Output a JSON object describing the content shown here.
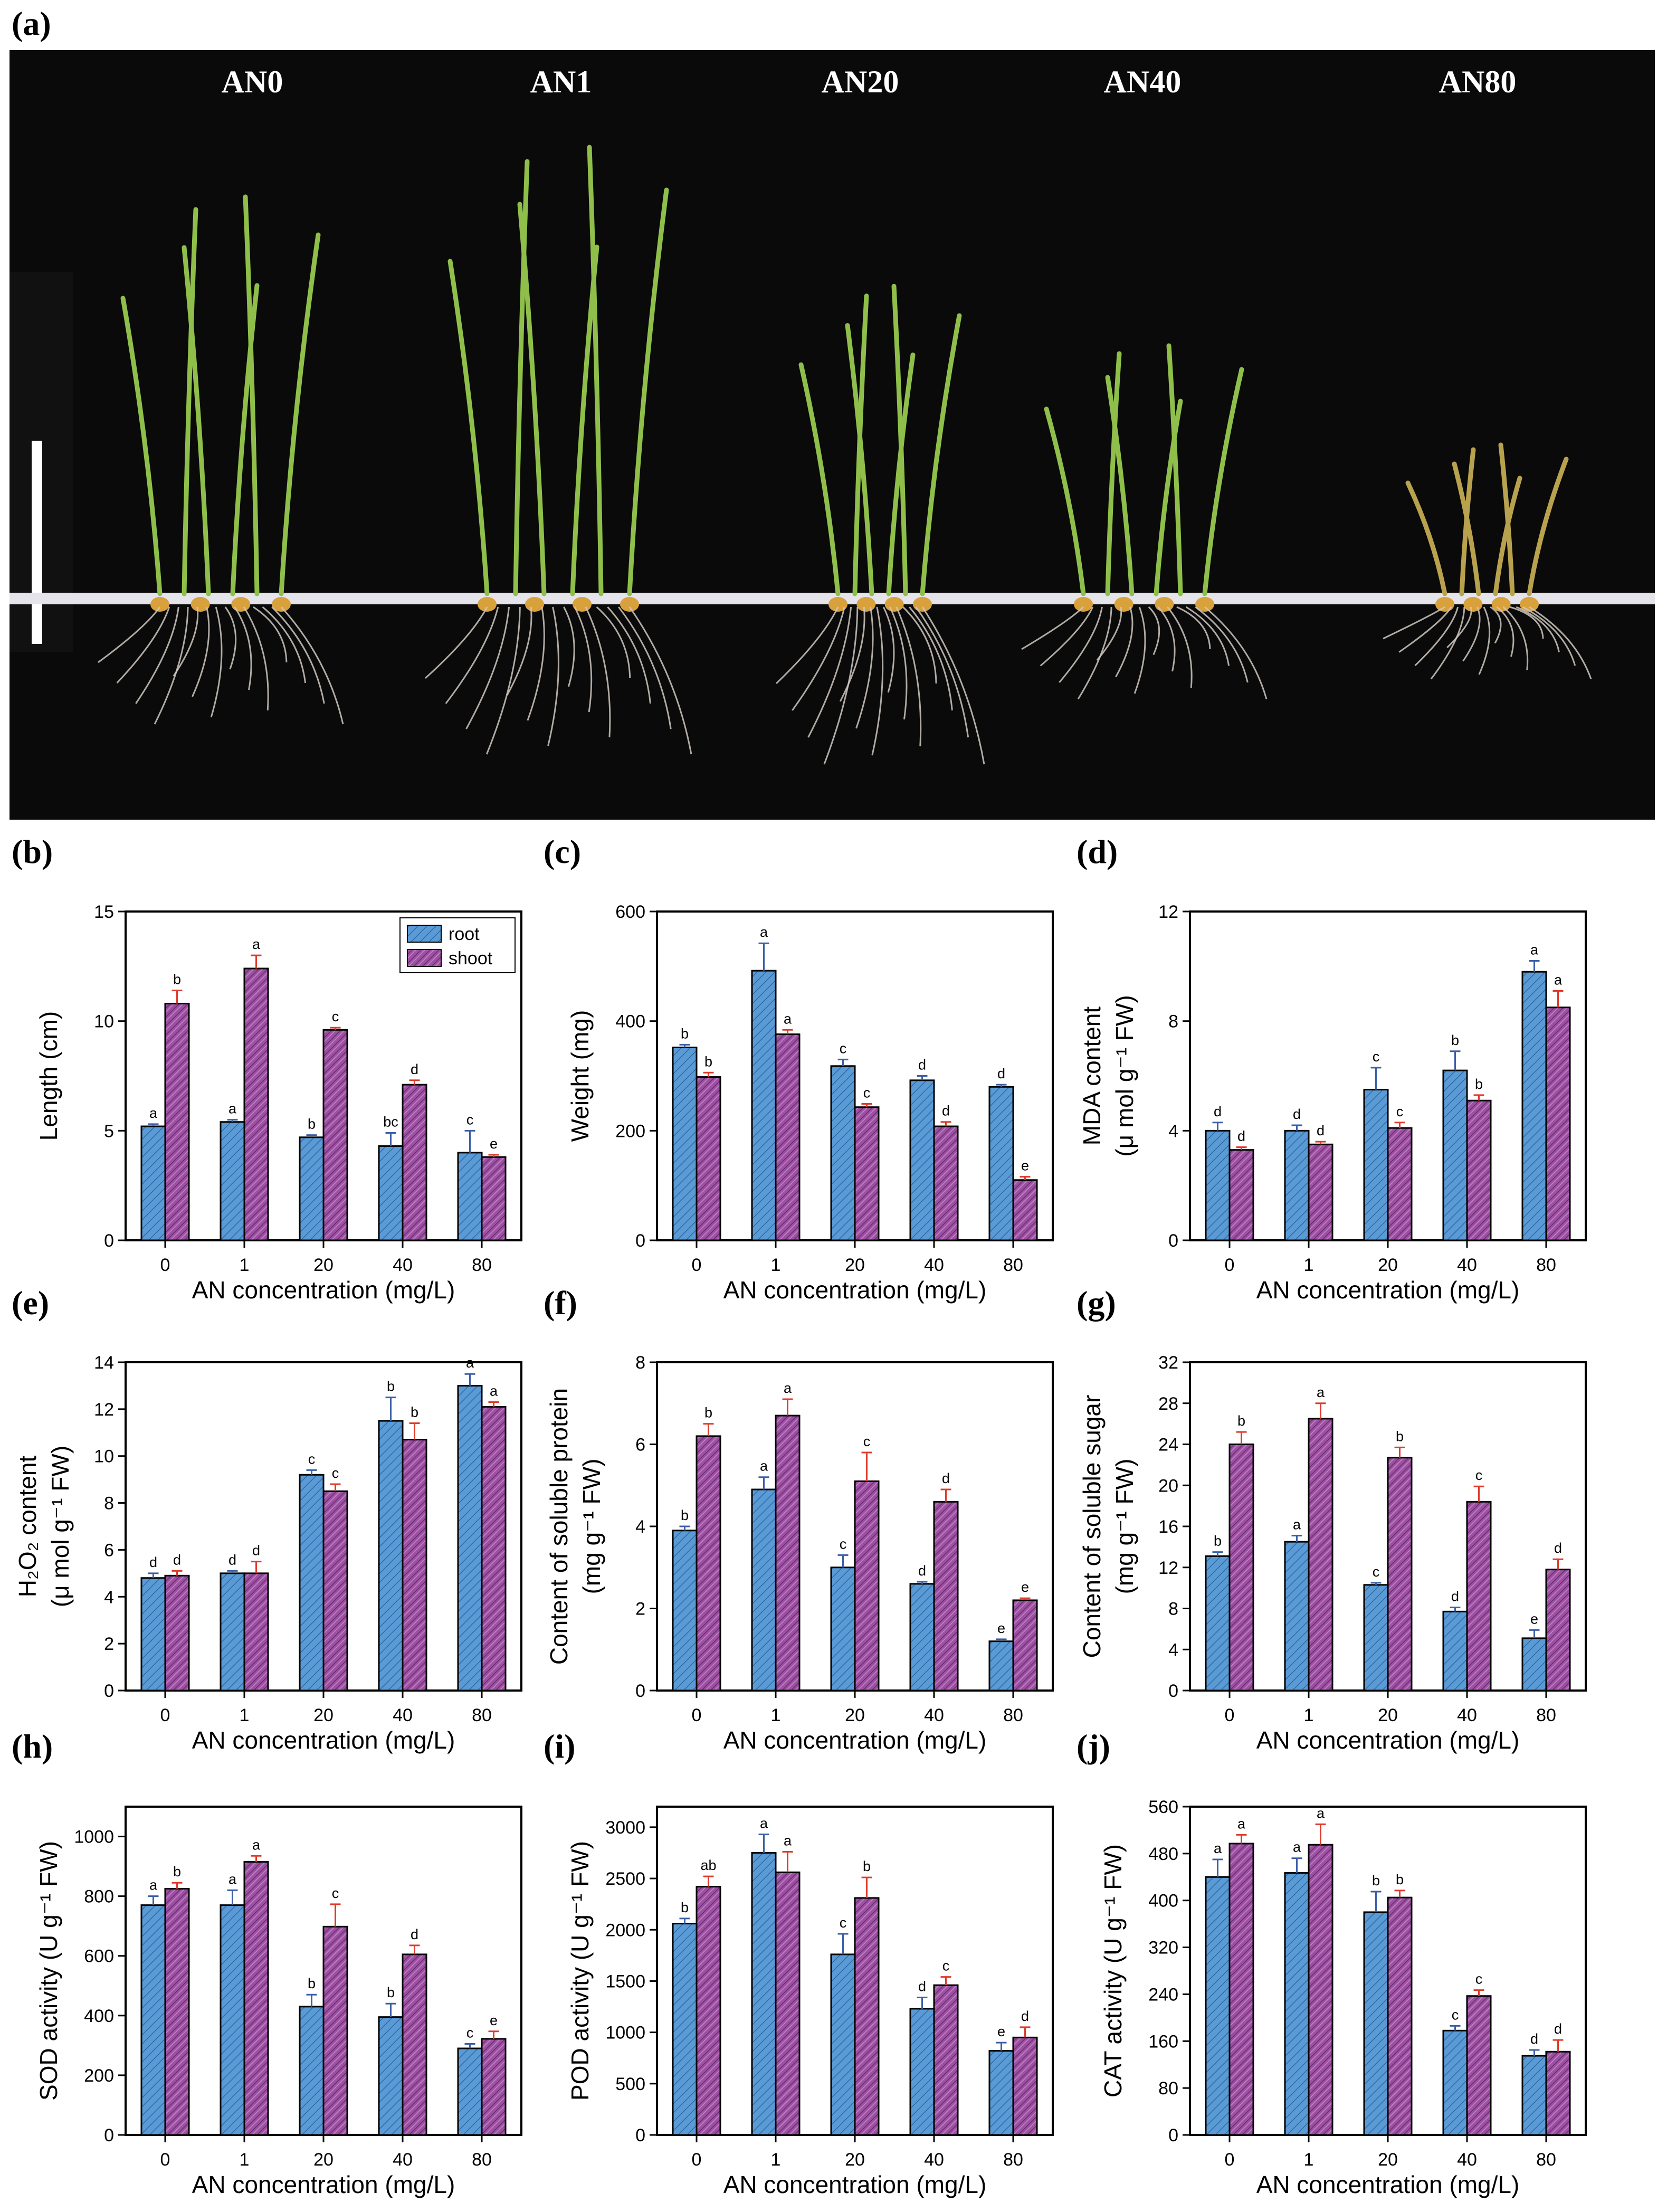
{
  "figure": {
    "panel_a_label": "(a)",
    "photo_labels": [
      "AN0",
      "AN1",
      "AN20",
      "AN40",
      "AN80"
    ]
  },
  "colors": {
    "root": "#5b9bd5",
    "shoot": "#9d4fa0",
    "root_err": "#3b5fa8",
    "shoot_err": "#e03a2a",
    "photo_bg": "#0a0a0a"
  },
  "chart_data": [
    {
      "id": "b",
      "panel_label": "(b)",
      "type": "bar",
      "categories": [
        "0",
        "1",
        "20",
        "40",
        "80"
      ],
      "xlabel": "AN concentration (mg/L)",
      "ylabel": "Length (cm)",
      "ylim": [
        0,
        15
      ],
      "yticks": [
        0,
        5,
        10,
        15
      ],
      "ytick_labels": [
        "0",
        "5",
        "10",
        "15"
      ],
      "legend": [
        "root",
        "shoot"
      ],
      "legend_position": "top-right",
      "series": [
        {
          "name": "root",
          "values": [
            5.2,
            5.4,
            4.7,
            4.3,
            4.0
          ],
          "errors": [
            0.1,
            0.1,
            0.1,
            0.6,
            1.0
          ],
          "letters": [
            "a",
            "a",
            "b",
            "bc",
            "c"
          ]
        },
        {
          "name": "shoot",
          "values": [
            10.8,
            12.4,
            9.6,
            7.1,
            3.8
          ],
          "errors": [
            0.6,
            0.6,
            0.1,
            0.2,
            0.1
          ],
          "letters": [
            "b",
            "a",
            "c",
            "d",
            "e"
          ]
        }
      ]
    },
    {
      "id": "c",
      "panel_label": "(c)",
      "type": "bar",
      "categories": [
        "0",
        "1",
        "20",
        "40",
        "80"
      ],
      "xlabel": "AN concentration (mg/L)",
      "ylabel": "Weight (mg)",
      "ylim": [
        0,
        600
      ],
      "yticks": [
        0,
        200,
        400,
        600
      ],
      "ytick_labels": [
        "0",
        "200",
        "400",
        "600"
      ],
      "series": [
        {
          "name": "root",
          "values": [
            352,
            492,
            318,
            292,
            280
          ],
          "errors": [
            5,
            50,
            12,
            8,
            4
          ],
          "letters": [
            "b",
            "a",
            "c",
            "d",
            "d"
          ]
        },
        {
          "name": "shoot",
          "values": [
            298,
            376,
            243,
            208,
            110
          ],
          "errors": [
            8,
            8,
            6,
            8,
            6
          ],
          "letters": [
            "b",
            "a",
            "c",
            "d",
            "e"
          ]
        }
      ]
    },
    {
      "id": "d",
      "panel_label": "(d)",
      "type": "bar",
      "categories": [
        "0",
        "1",
        "20",
        "40",
        "80"
      ],
      "xlabel": "AN concentration (mg/L)",
      "ylabel_lines": [
        "MDA content",
        "(μ mol g⁻¹ FW)"
      ],
      "ylim": [
        0,
        12
      ],
      "yticks": [
        0,
        4,
        8,
        12
      ],
      "ytick_labels": [
        "0",
        "4",
        "8",
        "12"
      ],
      "series": [
        {
          "name": "root",
          "values": [
            4.0,
            4.0,
            5.5,
            6.2,
            9.8
          ],
          "errors": [
            0.3,
            0.2,
            0.8,
            0.7,
            0.4
          ],
          "letters": [
            "d",
            "d",
            "c",
            "b",
            "a"
          ]
        },
        {
          "name": "shoot",
          "values": [
            3.3,
            3.5,
            4.1,
            5.1,
            8.5
          ],
          "errors": [
            0.1,
            0.1,
            0.2,
            0.2,
            0.6
          ],
          "letters": [
            "d",
            "d",
            "c",
            "b",
            "a"
          ]
        }
      ]
    },
    {
      "id": "e",
      "panel_label": "(e)",
      "type": "bar",
      "categories": [
        "0",
        "1",
        "20",
        "40",
        "80"
      ],
      "xlabel": "AN concentration (mg/L)",
      "ylabel_lines": [
        "H₂O₂ content",
        "(μ mol g⁻¹ FW)"
      ],
      "ylim": [
        0,
        14
      ],
      "yticks": [
        0,
        2,
        4,
        6,
        8,
        10,
        12,
        14
      ],
      "ytick_labels": [
        "0",
        "2",
        "4",
        "6",
        "8",
        "10",
        "12",
        "14"
      ],
      "series": [
        {
          "name": "root",
          "values": [
            4.8,
            5.0,
            9.2,
            11.5,
            13.0
          ],
          "errors": [
            0.2,
            0.1,
            0.2,
            1.0,
            0.5
          ],
          "letters": [
            "d",
            "d",
            "c",
            "b",
            "a"
          ]
        },
        {
          "name": "shoot",
          "values": [
            4.9,
            5.0,
            8.5,
            10.7,
            12.1
          ],
          "errors": [
            0.2,
            0.5,
            0.3,
            0.7,
            0.2
          ],
          "letters": [
            "d",
            "d",
            "c",
            "b",
            "a"
          ]
        }
      ]
    },
    {
      "id": "f",
      "panel_label": "(f)",
      "type": "bar",
      "categories": [
        "0",
        "1",
        "20",
        "40",
        "80"
      ],
      "xlabel": "AN concentration (mg/L)",
      "ylabel_lines": [
        "Content of soluble protein",
        "(mg g⁻¹ FW)"
      ],
      "ylim": [
        0,
        8
      ],
      "yticks": [
        0,
        2,
        4,
        6,
        8
      ],
      "ytick_labels": [
        "0",
        "2",
        "4",
        "6",
        "8"
      ],
      "series": [
        {
          "name": "root",
          "values": [
            3.9,
            4.9,
            3.0,
            2.6,
            1.2
          ],
          "errors": [
            0.1,
            0.3,
            0.3,
            0.05,
            0.05
          ],
          "letters": [
            "b",
            "a",
            "c",
            "d",
            "e"
          ]
        },
        {
          "name": "shoot",
          "values": [
            6.2,
            6.7,
            5.1,
            4.6,
            2.2
          ],
          "errors": [
            0.3,
            0.4,
            0.7,
            0.3,
            0.05
          ],
          "letters": [
            "b",
            "a",
            "c",
            "d",
            "e"
          ]
        }
      ]
    },
    {
      "id": "g",
      "panel_label": "(g)",
      "type": "bar",
      "categories": [
        "0",
        "1",
        "20",
        "40",
        "80"
      ],
      "xlabel": "AN concentration (mg/L)",
      "ylabel_lines": [
        "Content of soluble sugar",
        "(mg g⁻¹ FW)"
      ],
      "ylim": [
        0,
        32
      ],
      "yticks": [
        0,
        4,
        8,
        12,
        16,
        20,
        24,
        28,
        32
      ],
      "ytick_labels": [
        "0",
        "4",
        "8",
        "12",
        "16",
        "20",
        "24",
        "28",
        "32"
      ],
      "series": [
        {
          "name": "root",
          "values": [
            13.1,
            14.5,
            10.3,
            7.7,
            5.1
          ],
          "errors": [
            0.4,
            0.6,
            0.2,
            0.4,
            0.8
          ],
          "letters": [
            "b",
            "a",
            "c",
            "d",
            "e"
          ]
        },
        {
          "name": "shoot",
          "values": [
            24.0,
            26.5,
            22.7,
            18.4,
            11.8
          ],
          "errors": [
            1.2,
            1.5,
            1.0,
            1.5,
            1.0
          ],
          "letters": [
            "b",
            "a",
            "b",
            "c",
            "d"
          ]
        }
      ]
    },
    {
      "id": "h",
      "panel_label": "(h)",
      "type": "bar",
      "categories": [
        "0",
        "1",
        "20",
        "40",
        "80"
      ],
      "xlabel": "AN concentration (mg/L)",
      "ylabel": "SOD activity (U g⁻¹ FW)",
      "ylim": [
        0,
        1100
      ],
      "yticks": [
        0,
        200,
        400,
        600,
        800,
        1000
      ],
      "ytick_labels": [
        "0",
        "200",
        "400",
        "600",
        "800",
        "1000"
      ],
      "series": [
        {
          "name": "root",
          "values": [
            770,
            770,
            430,
            395,
            290
          ],
          "errors": [
            30,
            50,
            40,
            45,
            15
          ],
          "letters": [
            "a",
            "a",
            "b",
            "b",
            "c"
          ]
        },
        {
          "name": "shoot",
          "values": [
            825,
            915,
            698,
            605,
            322
          ],
          "errors": [
            20,
            20,
            75,
            30,
            25
          ],
          "letters": [
            "b",
            "a",
            "c",
            "d",
            "e"
          ]
        }
      ]
    },
    {
      "id": "i",
      "panel_label": "(i)",
      "type": "bar",
      "categories": [
        "0",
        "1",
        "20",
        "40",
        "80"
      ],
      "xlabel": "AN concentration (mg/L)",
      "ylabel": "POD activity (U g⁻¹ FW)",
      "ylim": [
        0,
        3200
      ],
      "yticks": [
        0,
        500,
        1000,
        1500,
        2000,
        2500,
        3000
      ],
      "ytick_labels": [
        "0",
        "500",
        "1000",
        "1500",
        "2000",
        "2500",
        "3000"
      ],
      "series": [
        {
          "name": "root",
          "values": [
            2060,
            2750,
            1760,
            1230,
            820
          ],
          "errors": [
            50,
            180,
            200,
            110,
            80
          ],
          "letters": [
            "b",
            "a",
            "c",
            "d",
            "e"
          ]
        },
        {
          "name": "shoot",
          "values": [
            2420,
            2560,
            2310,
            1460,
            950
          ],
          "errors": [
            100,
            200,
            200,
            80,
            100
          ],
          "letters": [
            "ab",
            "a",
            "b",
            "c",
            "d"
          ]
        }
      ]
    },
    {
      "id": "j",
      "panel_label": "(j)",
      "type": "bar",
      "categories": [
        "0",
        "1",
        "20",
        "40",
        "80"
      ],
      "xlabel": "AN concentration (mg/L)",
      "ylabel": "CAT activity (U g⁻¹ FW)",
      "ylim": [
        0,
        560
      ],
      "yticks": [
        0,
        80,
        160,
        240,
        320,
        400,
        480,
        560
      ],
      "ytick_labels": [
        "0",
        "80",
        "160",
        "240",
        "320",
        "400",
        "480",
        "560"
      ],
      "series": [
        {
          "name": "root",
          "values": [
            440,
            447,
            380,
            178,
            135
          ],
          "errors": [
            30,
            25,
            35,
            8,
            10
          ],
          "letters": [
            "a",
            "a",
            "b",
            "c",
            "d"
          ]
        },
        {
          "name": "shoot",
          "values": [
            497,
            495,
            405,
            237,
            142
          ],
          "errors": [
            15,
            35,
            12,
            10,
            20
          ],
          "letters": [
            "a",
            "a",
            "b",
            "c",
            "d"
          ]
        }
      ]
    }
  ]
}
